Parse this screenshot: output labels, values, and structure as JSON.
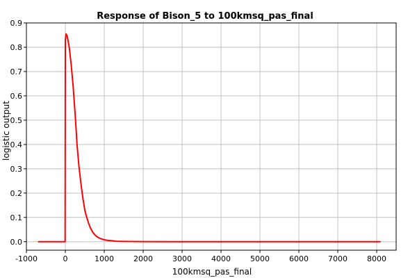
{
  "chart_data": {
    "type": "line",
    "title": "Response of Bison_5 to 100kmsq_pas_final",
    "xlabel": "100kmsq_pas_final",
    "ylabel": "logistic output",
    "xlim": [
      -1000,
      8500
    ],
    "ylim": [
      -0.035,
      0.9
    ],
    "xticks": [
      -1000,
      0,
      1000,
      2000,
      3000,
      4000,
      5000,
      6000,
      7000,
      8000
    ],
    "xtick_labels": [
      "-1000",
      "0",
      "1000",
      "2000",
      "3000",
      "4000",
      "5000",
      "6000",
      "7000",
      "8000"
    ],
    "yticks": [
      0.0,
      0.1,
      0.2,
      0.3,
      0.4,
      0.5,
      0.6,
      0.7,
      0.8,
      0.9
    ],
    "ytick_labels": [
      "0.0",
      "0.1",
      "0.2",
      "0.3",
      "0.4",
      "0.5",
      "0.6",
      "0.7",
      "0.8",
      "0.9"
    ],
    "grid": true,
    "series": [
      {
        "color": "#ff0000",
        "x": [
          -700,
          -5,
          0,
          20,
          50,
          100,
          150,
          200,
          250,
          290,
          300,
          350,
          400,
          450,
          500,
          550,
          600,
          650,
          700,
          750,
          800,
          900,
          1000,
          1100,
          1200,
          1300,
          1500,
          2000,
          3000,
          4000,
          5000,
          6000,
          7000,
          8100
        ],
        "y": [
          0.0,
          0.0,
          0.83,
          0.855,
          0.845,
          0.8,
          0.73,
          0.64,
          0.53,
          0.43,
          0.4,
          0.31,
          0.24,
          0.18,
          0.13,
          0.1,
          0.075,
          0.055,
          0.04,
          0.03,
          0.022,
          0.013,
          0.008,
          0.005,
          0.004,
          0.002,
          0.001,
          0.0005,
          0.0,
          0.0,
          0.0,
          0.0,
          0.0,
          0.0
        ]
      }
    ]
  }
}
